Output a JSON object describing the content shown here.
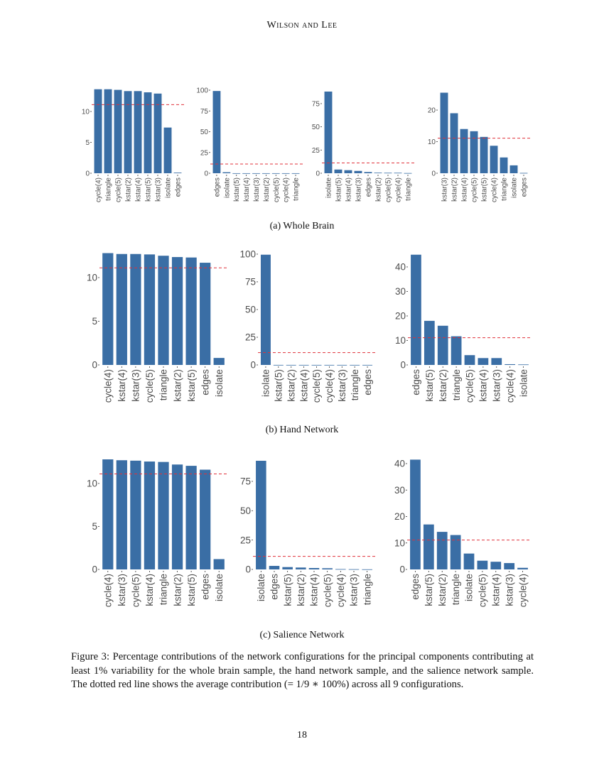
{
  "header": "Wilson and Lee",
  "captions": {
    "a": "(a) Whole Brain",
    "b": "(b) Hand Network",
    "c": "(c) Salience Network"
  },
  "figure_caption": "Figure 3: Percentage contributions of the network configurations for the principal components contributing at least 1% variability for the whole brain sample, the hand network sample, and the salience network sample. The dotted red line shows the average contribution (= 1/9 ∗ 100%) across all 9 configurations.",
  "page_number": "18",
  "colors": {
    "bar": "#3a6ea5",
    "reference_line": "#e0313a",
    "tick_text": "#4d4d4d"
  },
  "chart_data": [
    {
      "panel": "a",
      "type": "bar",
      "categories": [
        "cycle(4)",
        "triangle",
        "cycle(5)",
        "kstar(2)",
        "kstar(4)",
        "kstar(5)",
        "kstar(3)",
        "isolate",
        "edges"
      ],
      "values": [
        13.6,
        13.6,
        13.5,
        13.3,
        13.3,
        13.1,
        12.9,
        7.4,
        0.1
      ],
      "yticks": [
        0,
        5,
        10
      ],
      "ylim": [
        0,
        13.45
      ],
      "reference_line": 11.11,
      "grid": false
    },
    {
      "panel": "a",
      "type": "bar",
      "categories": [
        "edges",
        "isolate",
        "kstar(5)",
        "kstar(4)",
        "kstar(3)",
        "kstar(2)",
        "cycle(5)",
        "cycle(4)",
        "triangle"
      ],
      "values": [
        99,
        1.2,
        0.05,
        0.05,
        0.05,
        0.05,
        0.05,
        0.05,
        0.05
      ],
      "yticks": [
        0,
        25,
        50,
        75,
        100
      ],
      "ylim": [
        0,
        100
      ],
      "reference_line": 11.11,
      "grid": false
    },
    {
      "panel": "a",
      "type": "bar",
      "categories": [
        "isolate",
        "kstar(5)",
        "kstar(4)",
        "kstar(3)",
        "edges",
        "kstar(2)",
        "cycle(5)",
        "cycle(4)",
        "triangle"
      ],
      "values": [
        88,
        4,
        3.3,
        2.5,
        1.3,
        0.6,
        0.5,
        0.5,
        0.2
      ],
      "yticks": [
        0,
        25,
        50,
        75
      ],
      "ylim": [
        0,
        89.5
      ],
      "reference_line": 11.11,
      "grid": false
    },
    {
      "panel": "a",
      "type": "bar",
      "categories": [
        "kstar(3)",
        "kstar(2)",
        "kstar(4)",
        "cycle(5)",
        "kstar(5)",
        "cycle(4)",
        "triangle",
        "isolate",
        "edges"
      ],
      "values": [
        25.5,
        19,
        14,
        13.3,
        11.5,
        8.7,
        5,
        2.5,
        0.1
      ],
      "yticks": [
        0,
        10,
        20
      ],
      "ylim": [
        0,
        26.3
      ],
      "reference_line": 11.11,
      "grid": false
    },
    {
      "panel": "b",
      "type": "bar",
      "categories": [
        "cycle(4)",
        "kstar(4)",
        "kstar(3)",
        "cycle(5)",
        "triangle",
        "kstar(2)",
        "kstar(5)",
        "edges",
        "isolate"
      ],
      "values": [
        12.8,
        12.7,
        12.7,
        12.65,
        12.5,
        12.35,
        12.3,
        11.7,
        0.8
      ],
      "yticks": [
        0,
        5,
        10
      ],
      "ylim": [
        0,
        12.76
      ],
      "reference_line": 11.11,
      "grid": false
    },
    {
      "panel": "b",
      "type": "bar",
      "categories": [
        "isolate",
        "kstar(5)",
        "kstar(2)",
        "kstar(4)",
        "cycle(5)",
        "cycle(4)",
        "kstar(3)",
        "triangle",
        "edges"
      ],
      "values": [
        99.5,
        0.05,
        0.05,
        0.05,
        0.05,
        0.05,
        0.05,
        0.05,
        0.05
      ],
      "yticks": [
        0,
        25,
        50,
        75,
        100
      ],
      "ylim": [
        0,
        100.6
      ],
      "reference_line": 11.11,
      "grid": false
    },
    {
      "panel": "b",
      "type": "bar",
      "categories": [
        "edges",
        "kstar(5)",
        "kstar(2)",
        "triangle",
        "cycle(5)",
        "kstar(4)",
        "kstar(3)",
        "cycle(4)",
        "isolate"
      ],
      "values": [
        45,
        18,
        16,
        11.7,
        4,
        2.8,
        2.8,
        0.3,
        0.2
      ],
      "yticks": [
        0,
        10,
        20,
        30,
        40
      ],
      "ylim": [
        0,
        45.5
      ],
      "reference_line": 11.11,
      "grid": false
    },
    {
      "panel": "c",
      "type": "bar",
      "categories": [
        "cycle(4)",
        "kstar(3)",
        "cycle(5)",
        "kstar(4)",
        "triangle",
        "kstar(2)",
        "kstar(5)",
        "edges",
        "isolate"
      ],
      "values": [
        12.8,
        12.7,
        12.65,
        12.55,
        12.5,
        12.2,
        12.05,
        11.6,
        1.2
      ],
      "yticks": [
        0,
        5,
        10
      ],
      "ylim": [
        0,
        12.8
      ],
      "reference_line": 11.11,
      "grid": false
    },
    {
      "panel": "c",
      "type": "bar",
      "categories": [
        "isolate",
        "edges",
        "kstar(5)",
        "kstar(2)",
        "kstar(4)",
        "cycle(5)",
        "cycle(4)",
        "kstar(3)",
        "triangle"
      ],
      "values": [
        92.5,
        3,
        2,
        1.6,
        1.2,
        1,
        0.3,
        0.2,
        0.1
      ],
      "yticks": [
        0,
        25,
        50,
        75
      ],
      "ylim": [
        0,
        93.7
      ],
      "reference_line": 11.11,
      "grid": false
    },
    {
      "panel": "c",
      "type": "bar",
      "categories": [
        "edges",
        "kstar(5)",
        "kstar(2)",
        "triangle",
        "isolate",
        "cycle(5)",
        "kstar(4)",
        "kstar(3)",
        "cycle(4)"
      ],
      "values": [
        41.5,
        17,
        14.2,
        13,
        6,
        3.3,
        2.9,
        2.4,
        0.6
      ],
      "yticks": [
        0,
        10,
        20,
        30,
        40
      ],
      "ylim": [
        0,
        41.6
      ],
      "reference_line": 11.11,
      "grid": false
    }
  ]
}
